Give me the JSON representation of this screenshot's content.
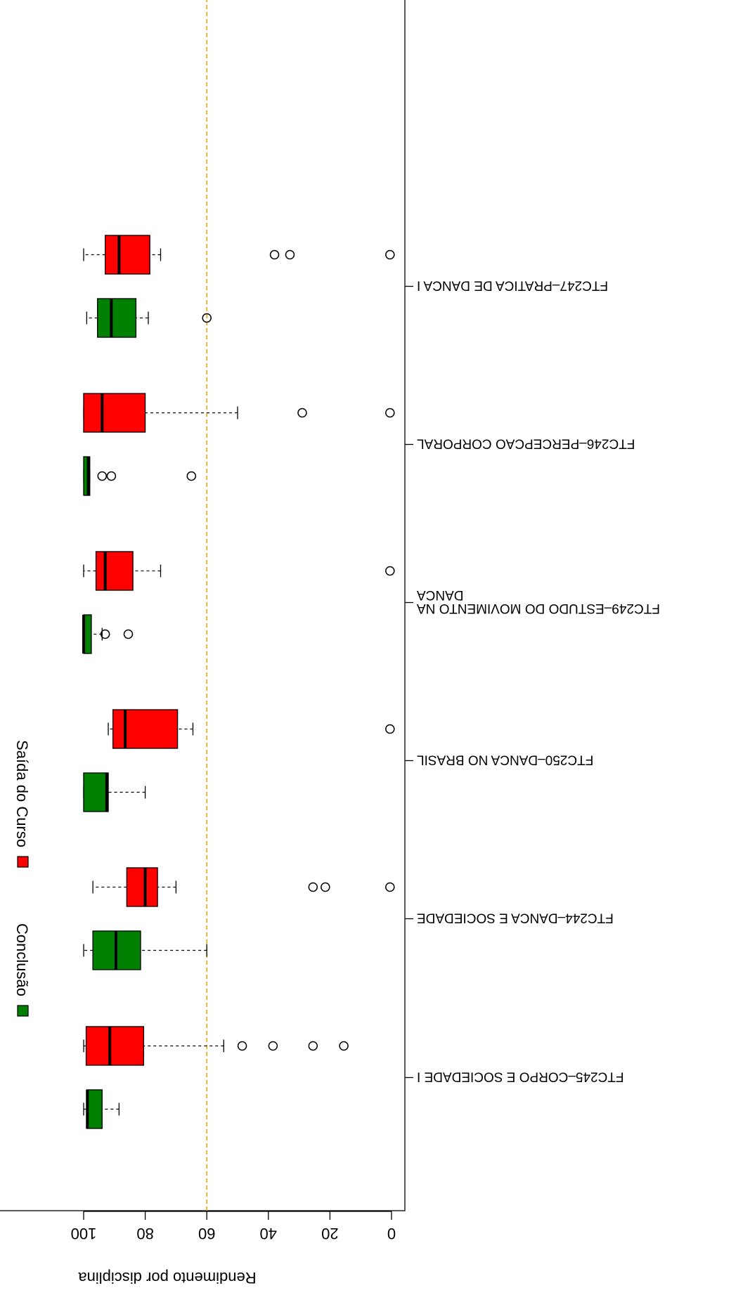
{
  "chart_data": {
    "type": "boxplot",
    "ylabel": "Rendimento por disciplina",
    "ylim": [
      0,
      100
    ],
    "yticks": [
      0,
      20,
      40,
      60,
      80,
      100
    ],
    "reference_line": {
      "value": 60,
      "color": "#FFA500",
      "style": "dashed"
    },
    "legend": {
      "position": "top-left",
      "entries": [
        {
          "label": "Conclusão",
          "color": "#008000"
        },
        {
          "label": "Saída do Curso",
          "color": "#FF0000"
        }
      ]
    },
    "groups": [
      {
        "label": "FTC245–CORPO E SOCIEDADE I",
        "boxes": [
          {
            "series": "Conclusão",
            "color": "#008000",
            "whisker_low": 88.5,
            "q1": 94,
            "median": 98.8,
            "q3": 99,
            "whisker_high": 100,
            "outliers": []
          },
          {
            "series": "Saída do Curso",
            "color": "#FF0000",
            "whisker_low": 54.5,
            "q1": 80.5,
            "median": 91.5,
            "q3": 99.2,
            "whisker_high": 100,
            "outliers": [
              48.5,
              38.5,
              25.5,
              15.5
            ]
          }
        ]
      },
      {
        "label": "FTC244–DANCA E SOCIEDADE",
        "boxes": [
          {
            "series": "Conclusão",
            "color": "#008000",
            "whisker_low": 60,
            "q1": 81.5,
            "median": 89.5,
            "q3": 97,
            "whisker_high": 100,
            "outliers": []
          },
          {
            "series": "Saída do Curso",
            "color": "#FF0000",
            "whisker_low": 70,
            "q1": 76,
            "median": 80,
            "q3": 86,
            "whisker_high": 97,
            "outliers": [
              25.5,
              21.5,
              0.5
            ]
          }
        ]
      },
      {
        "label": "FTC250–DANCA NO BRASIL",
        "boxes": [
          {
            "series": "Conclusão",
            "color": "#008000",
            "whisker_low": 80,
            "q1": 92,
            "median": 92.5,
            "q3": 100,
            "whisker_high": 100,
            "outliers": []
          },
          {
            "series": "Saída do Curso",
            "color": "#FF0000",
            "whisker_low": 64.5,
            "q1": 69.5,
            "median": 86.5,
            "q3": 90.5,
            "whisker_high": 92,
            "outliers": [
              0.5
            ]
          }
        ]
      },
      {
        "label": "FTC249–ESTUDO DO MOVIMENTO NA\nDANCA",
        "boxes": [
          {
            "series": "Conclusão",
            "color": "#008000",
            "whisker_low": 94,
            "q1": 97.5,
            "median": 100,
            "q3": 100,
            "whisker_high": 100,
            "outliers": [
              93,
              85.5
            ]
          },
          {
            "series": "Saída do Curso",
            "color": "#FF0000",
            "whisker_low": 75,
            "q1": 84,
            "median": 93,
            "q3": 96,
            "whisker_high": 100,
            "outliers": [
              0.5
            ]
          }
        ]
      },
      {
        "label": "FTC246–PERCEPCAO CORPORAL",
        "boxes": [
          {
            "series": "Conclusão",
            "color": "#008000",
            "whisker_low": 98,
            "q1": 98,
            "median": 98.5,
            "q3": 100,
            "whisker_high": 100,
            "outliers": [
              94,
              91,
              65
            ]
          },
          {
            "series": "Saída do Curso",
            "color": "#FF0000",
            "whisker_low": 50,
            "q1": 80,
            "median": 94,
            "q3": 100,
            "whisker_high": 100,
            "outliers": [
              29,
              0.5
            ]
          }
        ]
      },
      {
        "label": "FTC247–PRATICA DE DANCA I",
        "boxes": [
          {
            "series": "Conclusão",
            "color": "#008000",
            "whisker_low": 79,
            "q1": 83,
            "median": 91,
            "q3": 95.5,
            "whisker_high": 99,
            "outliers": [
              60
            ]
          },
          {
            "series": "Saída do Curso",
            "color": "#FF0000",
            "whisker_low": 75,
            "q1": 78.5,
            "median": 88.5,
            "q3": 93,
            "whisker_high": 100,
            "outliers": [
              38,
              33,
              0.5
            ]
          }
        ]
      }
    ]
  }
}
